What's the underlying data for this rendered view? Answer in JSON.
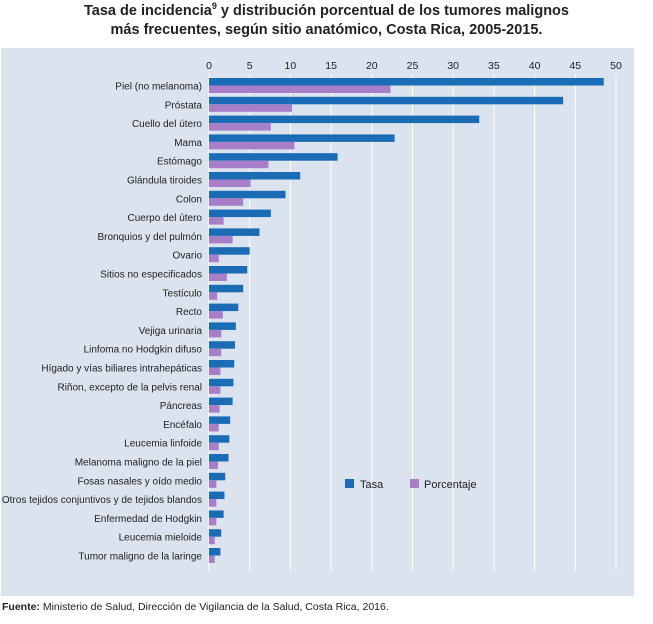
{
  "title_line1": "Tasa de incidencia",
  "title_sup": "9",
  "title_line1_rest": " y distribución porcentual de los tumores malignos",
  "title_line2": "más frecuentes, según sitio anatómico, Costa Rica, 2005-2015.",
  "source_label": "Fuente:",
  "source_text": " Ministerio de Salud, Dirección de Vigilancia de la Salud, Costa Rica, 2016.",
  "colors": {
    "tasa": "#1a6db5",
    "porcentaje": "#a77fc8",
    "panel": "#dbe3ee",
    "grid": "#ffffff"
  },
  "chart_data": {
    "type": "bar",
    "orientation": "horizontal",
    "xlim": [
      0,
      50
    ],
    "xticks": [
      0,
      5,
      10,
      15,
      20,
      25,
      30,
      35,
      40,
      45,
      50
    ],
    "grid": true,
    "legend_position": "lower-right",
    "categories": [
      "Piel (no melanoma)",
      "Próstata",
      "Cuello del útero",
      "Mama",
      "Estómago",
      "Glándula tiroides",
      "Colon",
      "Cuerpo del útero",
      "Bronquios y del pulmón",
      "Ovario",
      "Sitios no especificados",
      "Testículo",
      "Recto",
      "Vejiga urinaria",
      "Linfoma no Hodgkin difuso",
      "Hígado y vías biliares intrahepáticas",
      "Riñon, excepto de la pelvis renal",
      "Páncreas",
      "Encéfalo",
      "Leucemia linfoide",
      "Melanoma maligno de la piel",
      "Fosas nasales y oído medio",
      "Otros tejidos conjuntivos y de tejidos blandos",
      "Enfermedad de Hodgkin",
      "Leucemia mieloide",
      "Tumor maligno de la laringe"
    ],
    "series": [
      {
        "name": "Tasa",
        "values": [
          48.5,
          43.5,
          33.2,
          22.8,
          15.8,
          11.2,
          9.4,
          7.6,
          6.2,
          5.0,
          4.7,
          4.2,
          3.6,
          3.3,
          3.2,
          3.1,
          3.0,
          2.9,
          2.6,
          2.5,
          2.4,
          2.0,
          1.9,
          1.8,
          1.5,
          1.4
        ]
      },
      {
        "name": "Porcentaje",
        "values": [
          22.3,
          10.2,
          7.6,
          10.5,
          7.3,
          5.1,
          4.2,
          1.8,
          2.9,
          1.2,
          2.2,
          1.0,
          1.7,
          1.5,
          1.5,
          1.4,
          1.4,
          1.3,
          1.2,
          1.2,
          1.1,
          0.9,
          0.9,
          0.9,
          0.7,
          0.7
        ]
      }
    ]
  }
}
